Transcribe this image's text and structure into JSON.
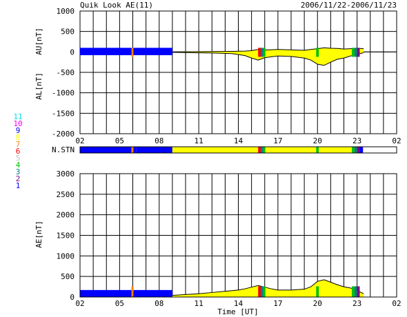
{
  "chart_data": [
    {
      "type": "line",
      "title": "Quik Look AE(11)",
      "date_range": "2006/11/22-2006/11/23",
      "series": [
        {
          "name": "AU[nT]",
          "x": [
            9.0,
            10.5,
            12.0,
            13.5,
            14.5,
            15.0,
            15.5,
            16.0,
            17.0,
            18.0,
            19.0,
            19.5,
            20.0,
            20.5,
            21.0,
            21.5,
            22.0,
            22.5,
            23.0,
            23.5
          ],
          "values": [
            0,
            5,
            10,
            15,
            20,
            30,
            60,
            45,
            60,
            50,
            40,
            60,
            80,
            100,
            90,
            85,
            70,
            80,
            90,
            80
          ]
        },
        {
          "name": "AL[nT]",
          "x": [
            9.0,
            10.5,
            12.0,
            13.5,
            14.5,
            15.0,
            15.5,
            16.0,
            17.0,
            18.0,
            19.0,
            19.5,
            20.0,
            20.5,
            21.0,
            21.5,
            22.0,
            22.5,
            23.0,
            23.5
          ],
          "values": [
            -10,
            -20,
            -25,
            -40,
            -90,
            -150,
            -200,
            -140,
            -100,
            -110,
            -150,
            -200,
            -300,
            -330,
            -250,
            -180,
            -150,
            -100,
            -60,
            -20
          ]
        }
      ],
      "xlim": [
        2,
        26
      ],
      "ylim": [
        -2000,
        1000
      ],
      "yticks": [
        "1000",
        "500",
        "0",
        "-500",
        "-1000",
        "-1500",
        "-2000"
      ],
      "xticks": [
        "02",
        "05",
        "08",
        "11",
        "14",
        "17",
        "20",
        "23",
        "02"
      ],
      "ylabel_top": "AU[nT]",
      "ylabel_bottom": "AL[nT]"
    },
    {
      "type": "line",
      "series": [
        {
          "name": "AE[nT]",
          "x": [
            9.0,
            10.0,
            11.0,
            12.0,
            13.0,
            14.0,
            14.5,
            15.0,
            15.5,
            16.0,
            16.5,
            17.0,
            18.0,
            19.0,
            19.5,
            20.0,
            20.5,
            21.0,
            21.5,
            22.0,
            22.5,
            23.0,
            23.5
          ],
          "values": [
            40,
            60,
            80,
            110,
            140,
            170,
            200,
            240,
            280,
            240,
            200,
            170,
            170,
            190,
            250,
            380,
            420,
            360,
            300,
            250,
            220,
            160,
            80
          ]
        }
      ],
      "xlim": [
        2,
        26
      ],
      "ylim": [
        0,
        3000
      ],
      "yticks": [
        "3000",
        "2500",
        "2000",
        "1500",
        "1000",
        "500",
        "0"
      ],
      "xticks": [
        "02",
        "05",
        "08",
        "11",
        "14",
        "17",
        "20",
        "23",
        "02"
      ],
      "ylabel": "AE[nT]",
      "xlabel": "Time [UT]"
    }
  ],
  "station_bar": {
    "label": "N.STN",
    "segments": [
      {
        "from": 2.0,
        "to": 5.9,
        "count": 1
      },
      {
        "from": 5.9,
        "to": 6.05,
        "count": 7
      },
      {
        "from": 6.05,
        "to": 6.25,
        "count": 1
      },
      {
        "from": 6.25,
        "to": 9.0,
        "count": 1
      },
      {
        "from": 9.0,
        "to": 15.5,
        "count": 8
      },
      {
        "from": 15.5,
        "to": 15.7,
        "count": 6
      },
      {
        "from": 15.7,
        "to": 15.9,
        "count": 3
      },
      {
        "from": 15.9,
        "to": 16.05,
        "count": 4
      },
      {
        "from": 16.05,
        "to": 19.9,
        "count": 8
      },
      {
        "from": 19.9,
        "to": 20.1,
        "count": 4
      },
      {
        "from": 20.1,
        "to": 22.6,
        "count": 8
      },
      {
        "from": 22.6,
        "to": 22.8,
        "count": 4
      },
      {
        "from": 22.8,
        "to": 23.0,
        "count": 3
      },
      {
        "from": 23.0,
        "to": 23.2,
        "count": 2
      },
      {
        "from": 23.2,
        "to": 23.45,
        "count": 1
      }
    ]
  },
  "legend": [
    {
      "label": "11",
      "color": "#00e0e0"
    },
    {
      "label": "10",
      "color": "#ff00ff"
    },
    {
      "label": "9",
      "color": "#0000ff"
    },
    {
      "label": "8",
      "color": "#ffff00"
    },
    {
      "label": "7",
      "color": "#ff8000"
    },
    {
      "label": "6",
      "color": "#ff0000"
    },
    {
      "label": "5",
      "color": "#c0c0c0"
    },
    {
      "label": "4",
      "color": "#00c000"
    },
    {
      "label": "3",
      "color": "#008080"
    },
    {
      "label": "2",
      "color": "#800080"
    },
    {
      "label": "1",
      "color": "#0000ff"
    }
  ],
  "colors": {
    "fill_main": "#ffff00",
    "fill_low": "#0000ff",
    "grid": "#000000"
  }
}
